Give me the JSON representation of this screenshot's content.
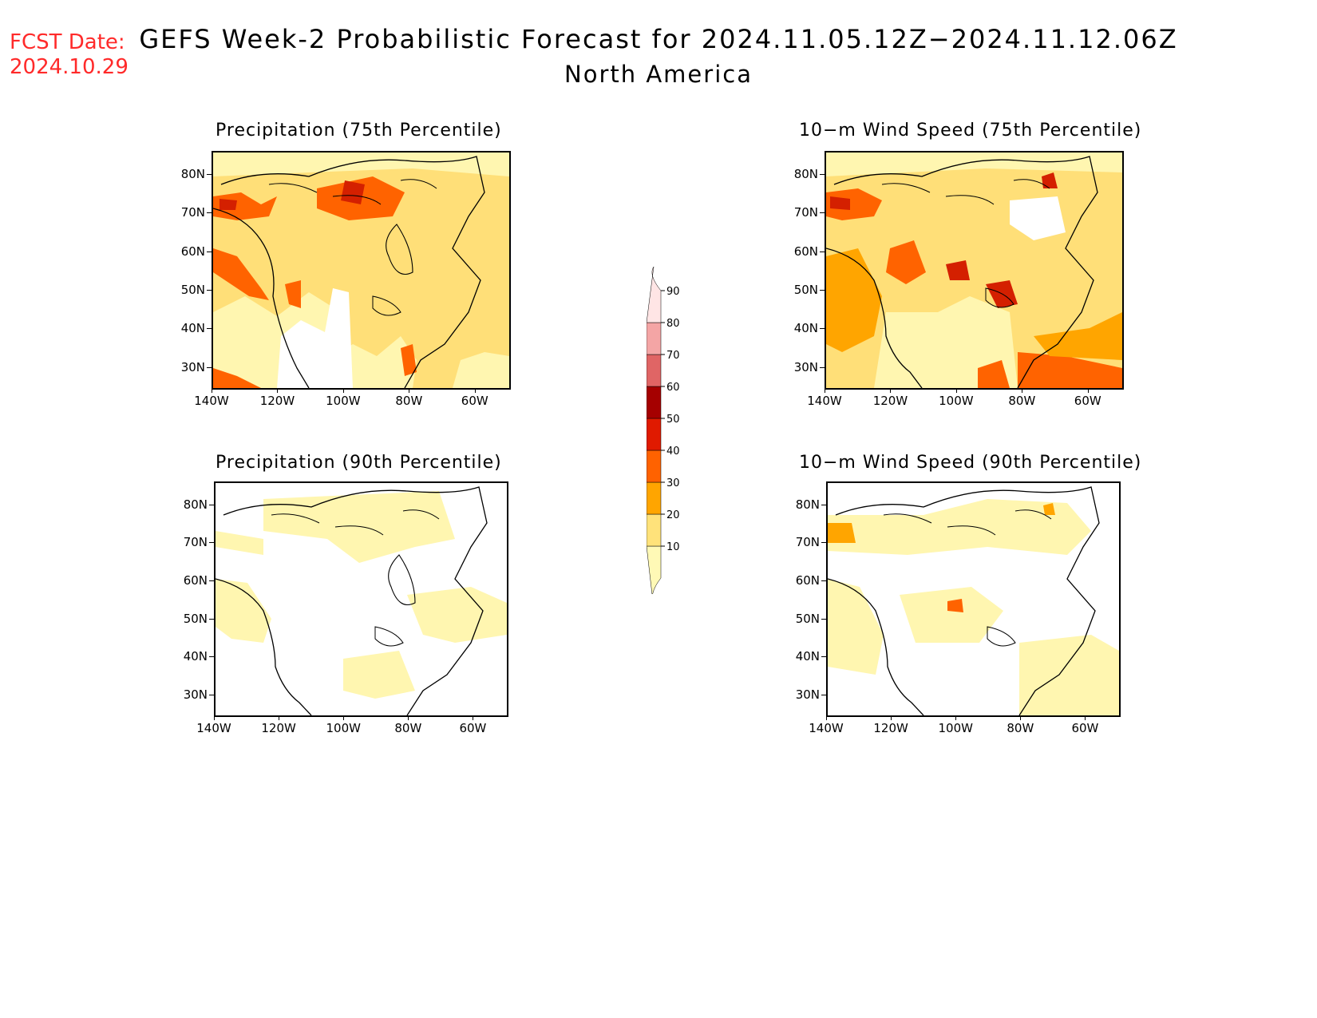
{
  "fcst_label": "FCST Date:",
  "fcst_date": "2024.10.29",
  "title": "GEFS Week-2 Probabilistic Forecast for 2024.11.05.12Z−2024.11.12.06Z",
  "subtitle": "North America",
  "lat_ticks": [
    "80N",
    "70N",
    "60N",
    "50N",
    "40N",
    "30N"
  ],
  "lon_ticks": [
    "140W",
    "120W",
    "100W",
    "80W",
    "60W"
  ],
  "panels": [
    {
      "id": "precip-75",
      "title": "Precipitation (75th Percentile)"
    },
    {
      "id": "wind-75",
      "title": "10−m Wind Speed (75th Percentile)"
    },
    {
      "id": "precip-90",
      "title": "Precipitation (90th Percentile)"
    },
    {
      "id": "wind-90",
      "title": "10−m Wind Speed (90th Percentile)"
    }
  ],
  "colorbar": {
    "levels": [
      "10",
      "20",
      "30",
      "40",
      "50",
      "60",
      "70",
      "80",
      "90"
    ],
    "colors": [
      "#fff9b6",
      "#ffe27a",
      "#ffa500",
      "#ff6200",
      "#e01a00",
      "#a50000",
      "#e06565",
      "#f4a5a5",
      "#ffe5e5"
    ]
  },
  "shading_colors": {
    "l1": "#fff6b0",
    "l2": "#ffdf78",
    "l3": "#ffa500",
    "l4": "#ff6300",
    "l5": "#d42000"
  }
}
